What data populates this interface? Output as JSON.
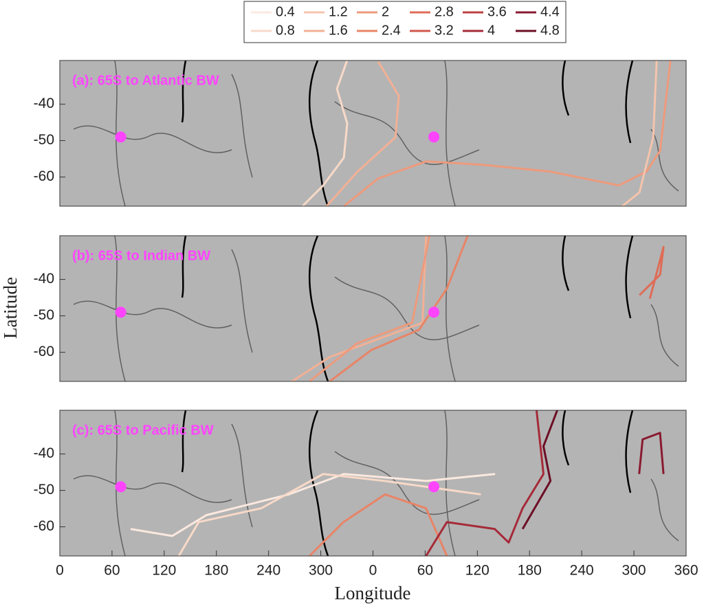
{
  "figure": {
    "xlabel": "Longitude",
    "ylabel": "Latitude",
    "legend_levels": [
      0.4,
      0.8,
      1.2,
      1.6,
      2,
      2.4,
      2.8,
      3.2,
      3.6,
      4,
      4.4,
      4.8
    ],
    "legend_colors": [
      "#fbe9df",
      "#f8d9c8",
      "#f5c4ad",
      "#f2b095",
      "#ee9a7c",
      "#e88467",
      "#df6c57",
      "#d1564b",
      "#bd3f40",
      "#a52a38",
      "#8a1a2f",
      "#6c0e25"
    ],
    "marker_color": "#ff44ff",
    "background": "#b4b4b4"
  },
  "chart_data": [
    {
      "type": "line",
      "title": "(a): 65S to Atlantic BW",
      "xlim": [
        0,
        720
      ],
      "ylim": [
        -68,
        -28
      ],
      "yticks": [
        -40,
        -50,
        -60
      ],
      "markers": {
        "x": [
          70,
          430
        ],
        "y": [
          -49,
          -49
        ]
      },
      "series": [
        {
          "color": "#f8d9c8",
          "x": [
            279,
            302.8,
            326.5,
            330.4,
            318.6,
            330.4
          ],
          "y": [
            -68,
            -62.3,
            -54.7,
            -45.3,
            -35.8,
            -27.9
          ]
        },
        {
          "color": "#f2b095",
          "x": [
            306.7,
            342.3,
            385.8,
            389.7,
            366
          ],
          "y": [
            -68,
            -58.5,
            -49.1,
            -37.7,
            -28.3
          ]
        },
        {
          "color": "#ee9a7c",
          "x": [
            326.5,
            366,
            421.3,
            484.6,
            563.6,
            642.7,
            674.3,
            690.1,
            702
          ],
          "y": [
            -68,
            -60.4,
            -55.7,
            -56.6,
            -58.5,
            -62.3,
            -58.5,
            -52.8,
            -27.9
          ]
        },
        {
          "color": "#f5c4ad",
          "x": [
            646.6,
            666.4,
            682.2,
            686.2
          ],
          "y": [
            -68,
            -64.2,
            -49.1,
            -27.9
          ]
        }
      ]
    },
    {
      "type": "line",
      "title": "(b): 65S to Indian BW",
      "xlim": [
        0,
        720
      ],
      "ylim": [
        -68,
        -28
      ],
      "yticks": [
        -40,
        -50,
        -60
      ],
      "markers": {
        "x": [
          70,
          430
        ],
        "y": [
          -49,
          -49
        ]
      },
      "series": [
        {
          "color": "#f2b095",
          "x": [
            266.8,
            310.3,
            373.5,
            417,
            421
          ],
          "y": [
            -68,
            -61.3,
            -55.7,
            -51.9,
            -27.9
          ]
        },
        {
          "color": "#ee9a7c",
          "x": [
            287,
            342,
            405,
            425
          ],
          "y": [
            -68,
            -57.5,
            -51.9,
            -27.9
          ]
        },
        {
          "color": "#e88467",
          "x": [
            310.3,
            358,
            413,
            445,
            469
          ],
          "y": [
            -68,
            -59.4,
            -53.8,
            -42.5,
            -27.9
          ]
        },
        {
          "color": "#df6c57",
          "x": [
            666.4,
            690.1,
            694,
            678.3
          ],
          "y": [
            -44.3,
            -38.7,
            -31.1,
            -45.3
          ]
        }
      ]
    },
    {
      "type": "line",
      "title": "(c): 65S to Pacific BW",
      "xlim": [
        0,
        720
      ],
      "ylim": [
        -68,
        -28
      ],
      "yticks": [
        -40,
        -50,
        -60
      ],
      "xticks": [
        0,
        60,
        120,
        180,
        240,
        300,
        {
          "value": 360,
          "label": "0"
        },
        {
          "value": 420,
          "label": "60"
        },
        {
          "value": 480,
          "label": "120"
        },
        {
          "value": 540,
          "label": "180"
        },
        {
          "value": 600,
          "label": "240"
        },
        {
          "value": 660,
          "label": "300"
        },
        {
          "value": 720,
          "label": "360"
        }
      ],
      "markers": {
        "x": [
          70,
          430
        ],
        "y": [
          -49,
          -49
        ]
      },
      "series": [
        {
          "color": "#fbe9df",
          "x": [
            81.4,
            129.2,
            168.4,
            263.2,
            326.5,
            421.3,
            500.4
          ],
          "y": [
            -60.6,
            -62.5,
            -56.8,
            -51.1,
            -45.5,
            -47.4,
            -45.5
          ]
        },
        {
          "color": "#f8d9c8",
          "x": [
            136.8,
            159.6,
            231.6,
            302.8,
            373.1,
            484
          ],
          "y": [
            -68,
            -58.7,
            -54.9,
            -45.5,
            -47.4,
            -51.1
          ]
        },
        {
          "color": "#e88467",
          "x": [
            287,
            326,
            374,
            421,
            445
          ],
          "y": [
            -68,
            -58.7,
            -51.1,
            -54.9,
            -68
          ]
        },
        {
          "color": "#a52a38",
          "x": [
            421,
            445,
            500,
            516,
            532,
            556,
            548
          ],
          "y": [
            -68,
            -58.7,
            -60.6,
            -64.3,
            -54.9,
            -45.5,
            -27.9
          ]
        },
        {
          "color": "#6c0e25",
          "x": [
            532,
            564,
            556,
            572
          ],
          "y": [
            -60.6,
            -47.4,
            -37.9,
            -27.9
          ]
        },
        {
          "color": "#8a1a2f",
          "x": [
            666,
            670,
            690,
            694
          ],
          "y": [
            -45.5,
            -36,
            -34.2,
            -45.5
          ]
        }
      ]
    }
  ]
}
